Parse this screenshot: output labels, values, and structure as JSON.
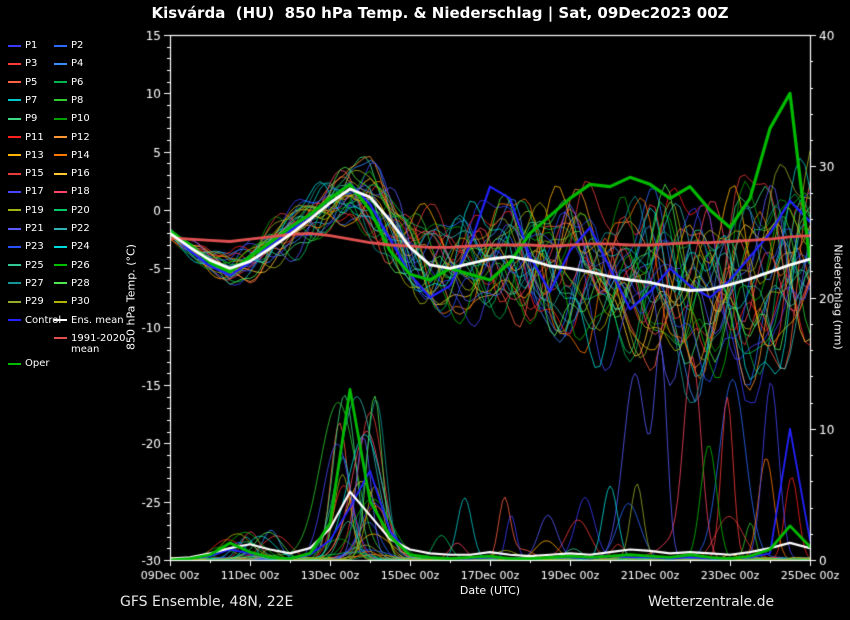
{
  "title": "Kisvárda  (HU)  850 hPa Temp. & Niederschlag | Sat, 09Dec2023 00Z",
  "footer": {
    "left": "GFS Ensemble, 48N, 22E",
    "right": "Wetterzentrale.de"
  },
  "legend": {
    "members": [
      {
        "label": "P1",
        "color": "#3a3aff"
      },
      {
        "label": "P2",
        "color": "#2b6bff"
      },
      {
        "label": "P3",
        "color": "#ff3a3a"
      },
      {
        "label": "P4",
        "color": "#3a8cff"
      },
      {
        "label": "P5",
        "color": "#ff6040"
      },
      {
        "label": "P6",
        "color": "#00b450"
      },
      {
        "label": "P7",
        "color": "#00c8c8"
      },
      {
        "label": "P8",
        "color": "#2ecc2e"
      },
      {
        "label": "P9",
        "color": "#3ddc84"
      },
      {
        "label": "P10",
        "color": "#00a000"
      },
      {
        "label": "P11",
        "color": "#ff2020"
      },
      {
        "label": "P12",
        "color": "#ff9632"
      },
      {
        "label": "P13",
        "color": "#ffb400"
      },
      {
        "label": "P14",
        "color": "#ff7800"
      },
      {
        "label": "P15",
        "color": "#e83c3c"
      },
      {
        "label": "P16",
        "color": "#ffc832"
      },
      {
        "label": "P17",
        "color": "#4646ff"
      },
      {
        "label": "P18",
        "color": "#ff4664"
      },
      {
        "label": "P19",
        "color": "#a0b414"
      },
      {
        "label": "P20",
        "color": "#00c864"
      },
      {
        "label": "P21",
        "color": "#5a5aff"
      },
      {
        "label": "P22",
        "color": "#32b4b4"
      },
      {
        "label": "P23",
        "color": "#2850ff"
      },
      {
        "label": "P24",
        "color": "#00dcdc"
      },
      {
        "label": "P25",
        "color": "#32c896"
      },
      {
        "label": "P26",
        "color": "#00be00"
      },
      {
        "label": "P27",
        "color": "#149696"
      },
      {
        "label": "P28",
        "color": "#50e650"
      },
      {
        "label": "P29",
        "color": "#96aa28"
      },
      {
        "label": "P30",
        "color": "#b4b400"
      }
    ],
    "control": {
      "label": "Control",
      "color": "#2222ff"
    },
    "ens_mean": {
      "label": "Ens. mean",
      "color": "#ffffff"
    },
    "clim_mean": {
      "label": "1991-2020",
      "label2": "mean",
      "color": "#e05050"
    },
    "oper": {
      "label": "Oper",
      "color": "#00bb00"
    }
  },
  "chart_data": {
    "type": "line",
    "title": "Kisvárda  (HU)  850 hPa Temp. & Niederschlag | Sat, 09Dec2023 00Z",
    "xlabel": "Date (UTC)",
    "ylabel_left": "850 hPa Temp. (°C)",
    "ylabel_right": "Niederschlag (mm)",
    "x_ticks": [
      "09Dec 00z",
      "11Dec 00z",
      "13Dec 00z",
      "15Dec 00z",
      "17Dec 00z",
      "19Dec 00z",
      "21Dec 00z",
      "23Dec 00z",
      "25Dec 00z"
    ],
    "x_range_days": 16,
    "sample_step_days": 0.5,
    "ylim_left": [
      -30,
      15
    ],
    "yticks_left": [
      15,
      10,
      5,
      0,
      -5,
      -10,
      -15,
      -20,
      -25,
      -30
    ],
    "ylim_right": [
      0,
      40
    ],
    "yticks_right": [
      40,
      30,
      20,
      10,
      0
    ],
    "grid": false,
    "legend_position": "left",
    "temperature_series": [
      {
        "name": "Control",
        "color": "#2222ff",
        "width": 2.2,
        "values": [
          -1.8,
          -3.5,
          -4.8,
          -5.6,
          -4.5,
          -3.0,
          -1.8,
          -0.5,
          1.0,
          2.3,
          0.5,
          -2.5,
          -5.5,
          -7.5,
          -6.5,
          -3.0,
          2.0,
          1.0,
          -4.0,
          -7.0,
          -3.5,
          -1.5,
          -5.0,
          -8.5,
          -7.0,
          -5.0,
          -6.5,
          -7.5,
          -6.0,
          -4.0,
          -2.0,
          0.8,
          -1.0
        ]
      },
      {
        "name": "Oper",
        "color": "#00bb00",
        "width": 3.2,
        "values": [
          -1.8,
          -3.0,
          -4.5,
          -5.3,
          -4.0,
          -2.8,
          -1.5,
          -0.4,
          1.0,
          2.2,
          0.0,
          -3.5,
          -5.5,
          -6.0,
          -5.0,
          -5.5,
          -6.0,
          -4.5,
          -2.0,
          -0.5,
          1.0,
          2.2,
          2.0,
          2.8,
          2.2,
          1.0,
          2.0,
          0.0,
          -1.5,
          1.0,
          7.0,
          10.0,
          -4.5
        ]
      },
      {
        "name": "1991-2020 mean",
        "color": "#e05050",
        "width": 2.8,
        "values": [
          -2.4,
          -2.5,
          -2.6,
          -2.7,
          -2.5,
          -2.3,
          -2.1,
          -2.0,
          -2.2,
          -2.5,
          -2.8,
          -3.0,
          -3.1,
          -3.2,
          -3.2,
          -3.1,
          -3.0,
          -3.0,
          -3.0,
          -3.1,
          -3.0,
          -2.9,
          -2.9,
          -3.0,
          -3.0,
          -2.9,
          -2.8,
          -2.8,
          -2.7,
          -2.6,
          -2.5,
          -2.3,
          -2.2
        ]
      },
      {
        "name": "Ens. mean",
        "color": "#ffffff",
        "width": 2.8,
        "values": [
          -2.0,
          -3.2,
          -4.3,
          -5.0,
          -4.4,
          -3.3,
          -2.1,
          -0.8,
          0.6,
          1.8,
          1.1,
          -0.9,
          -3.2,
          -4.7,
          -5.0,
          -4.6,
          -4.2,
          -4.0,
          -4.3,
          -4.8,
          -5.0,
          -5.3,
          -5.7,
          -6.0,
          -6.2,
          -6.6,
          -6.9,
          -6.8,
          -6.4,
          -5.9,
          -5.3,
          -4.7,
          -4.2
        ]
      }
    ],
    "precipitation_series": [
      {
        "name": "Control",
        "color": "#2222ff",
        "width": 1.8,
        "values": [
          0.0,
          0.1,
          0.3,
          0.8,
          0.5,
          0.2,
          0.1,
          0.4,
          1.5,
          4.0,
          6.8,
          2.2,
          0.4,
          0.2,
          0.1,
          0.1,
          0.2,
          0.1,
          0.1,
          0.2,
          0.2,
          0.1,
          0.3,
          0.2,
          0.2,
          0.1,
          0.2,
          0.1,
          0.1,
          0.2,
          0.5,
          10.0,
          1.5
        ]
      },
      {
        "name": "Ens. mean",
        "color": "#ffffff",
        "width": 2.2,
        "values": [
          0.1,
          0.2,
          0.5,
          0.9,
          1.2,
          0.8,
          0.5,
          0.9,
          2.4,
          5.2,
          3.4,
          1.6,
          0.8,
          0.5,
          0.4,
          0.4,
          0.6,
          0.4,
          0.3,
          0.4,
          0.5,
          0.4,
          0.6,
          0.8,
          0.7,
          0.5,
          0.6,
          0.5,
          0.4,
          0.6,
          0.9,
          1.3,
          0.9
        ]
      },
      {
        "name": "Oper",
        "color": "#00bb00",
        "width": 2.8,
        "values": [
          0.0,
          0.1,
          0.4,
          1.3,
          0.6,
          0.2,
          0.1,
          0.5,
          2.8,
          13.0,
          4.5,
          1.8,
          0.4,
          0.2,
          0.1,
          0.2,
          0.3,
          0.1,
          0.1,
          0.2,
          0.3,
          0.2,
          0.3,
          0.4,
          0.3,
          0.2,
          0.4,
          0.2,
          0.1,
          0.3,
          0.8,
          2.6,
          1.0
        ]
      }
    ],
    "ensemble_members": [
      "P1",
      "P2",
      "P3",
      "P4",
      "P5",
      "P6",
      "P7",
      "P8",
      "P9",
      "P10",
      "P11",
      "P12",
      "P13",
      "P14",
      "P15",
      "P16",
      "P17",
      "P18",
      "P19",
      "P20",
      "P21",
      "P22",
      "P23",
      "P24",
      "P25",
      "P26",
      "P27",
      "P28",
      "P29",
      "P30"
    ]
  }
}
